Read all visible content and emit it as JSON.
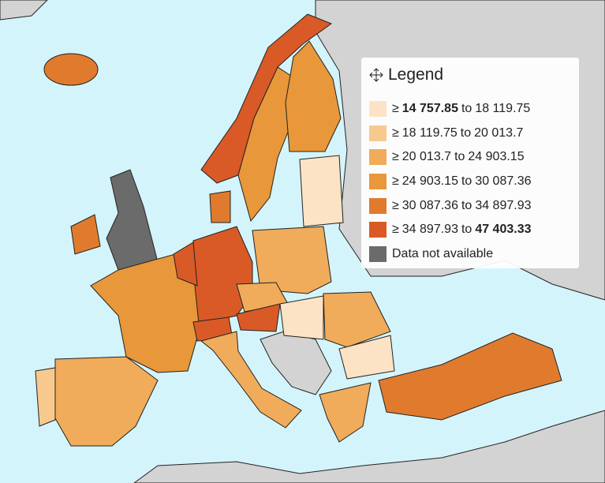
{
  "legend": {
    "title": "Legend",
    "prefix": "≥",
    "connector": "to",
    "items": [
      {
        "from": "14 757.85",
        "to": "18 119.75",
        "color": "#fde3c5"
      },
      {
        "from": "18 119.75",
        "to": "20 013.7",
        "color": "#f7c98e"
      },
      {
        "from": "20 013.7",
        "to": "24 903.15",
        "color": "#f0ac5a"
      },
      {
        "from": "24 903.15",
        "to": "30 087.36",
        "color": "#e8973a"
      },
      {
        "from": "30 087.36",
        "to": "34 897.93",
        "color": "#e07b2e"
      },
      {
        "from": "34 897.93",
        "to": "47 403.33",
        "color": "#d95a26"
      }
    ],
    "na_label": "Data not available",
    "na_color": "#6b6b6b"
  }
}
